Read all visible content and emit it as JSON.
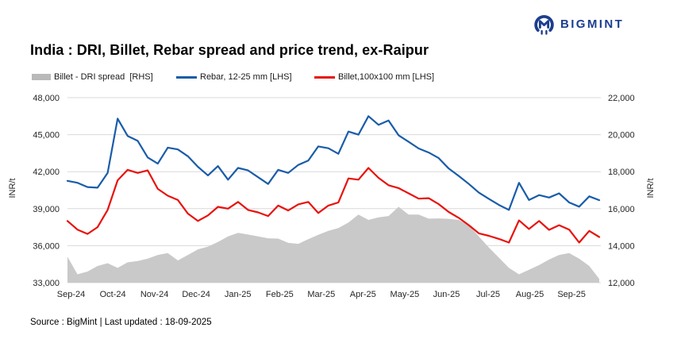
{
  "header": {
    "logo_text": "BIGMINT",
    "logo_color": "#1c3e8e"
  },
  "title": "India : DRI, Billet, Rebar spread and price trend, ex-Raipur",
  "legend": [
    {
      "label": "Billet - DRI spread  [RHS]",
      "swatch": "area",
      "color": "#b9b9b9"
    },
    {
      "label": "Rebar, 12-25 mm [LHS]",
      "swatch": "line",
      "color": "#1a5ca9"
    },
    {
      "label": "Billet,100x100 mm [LHS]",
      "swatch": "line",
      "color": "#e8120c"
    }
  ],
  "footer": "Source : BigMint | Last updated : 18-09-2025",
  "chart_data": {
    "type": "line",
    "title": "India : DRI, Billet, Rebar spread and price trend, ex-Raipur",
    "grid": true,
    "legend_position": "top",
    "x_tick_labels": [
      "Sep-24",
      "Oct-24",
      "Nov-24",
      "Dec-24",
      "Jan-25",
      "Feb-25",
      "Mar-25",
      "Apr-25",
      "May-25",
      "Jun-25",
      "Jul-25",
      "Aug-25",
      "Sep-25"
    ],
    "left_axis": {
      "label": "INR/t",
      "min": 33000,
      "max": 48000,
      "ticks": [
        "48,000",
        "45,000",
        "42,000",
        "39,000",
        "36,000",
        "33,000"
      ]
    },
    "right_axis": {
      "label": "INR/t",
      "min": 12000,
      "max": 22000,
      "ticks": [
        "22,000",
        "20,000",
        "18,000",
        "16,000",
        "14,000",
        "12,000"
      ]
    },
    "x_unit": "weekly, Sep-2024 to mid-Sep-2025",
    "series": [
      {
        "name": "Billet - DRI spread [RHS]",
        "slug": "spread-area",
        "type": "area",
        "axis": "right",
        "color": "#c9c9c9",
        "values": [
          13400,
          12450,
          12600,
          12900,
          13050,
          12800,
          13100,
          13170,
          13300,
          13500,
          13600,
          13200,
          13500,
          13800,
          13950,
          14200,
          14500,
          14690,
          14600,
          14500,
          14400,
          14380,
          14150,
          14100,
          14350,
          14590,
          14800,
          14950,
          15250,
          15680,
          15390,
          15530,
          15600,
          16100,
          15680,
          15680,
          15460,
          15470,
          15450,
          15390,
          15100,
          14500,
          13900,
          13350,
          12800,
          12450,
          12700,
          12950,
          13250,
          13500,
          13600,
          13300,
          12900,
          12200
        ]
      },
      {
        "name": "Rebar, 12-25 mm [LHS]",
        "slug": "rebar-line",
        "type": "line",
        "axis": "left",
        "color": "#1a5ca9",
        "values": [
          41250,
          41100,
          40750,
          40700,
          41900,
          46300,
          44900,
          44500,
          43150,
          42650,
          43950,
          43800,
          43250,
          42400,
          41700,
          42450,
          41350,
          42300,
          42100,
          41550,
          41000,
          42150,
          41900,
          42550,
          42900,
          44050,
          43900,
          43450,
          45250,
          45000,
          46500,
          45800,
          46150,
          44950,
          44420,
          43880,
          43550,
          43100,
          42250,
          41650,
          41000,
          40300,
          39800,
          39300,
          38900,
          41100,
          39700,
          40100,
          39900,
          40240,
          39500,
          39160,
          40000,
          39690
        ]
      },
      {
        "name": "Billet,100x100 mm [LHS]",
        "slug": "billet-line",
        "type": "line",
        "axis": "left",
        "color": "#e8120c",
        "values": [
          38000,
          37300,
          36950,
          37500,
          38900,
          41300,
          42150,
          41900,
          42100,
          40600,
          40050,
          39700,
          38600,
          38000,
          38450,
          39150,
          39000,
          39550,
          38900,
          38700,
          38400,
          39250,
          38850,
          39350,
          39550,
          38650,
          39250,
          39500,
          41450,
          41350,
          42300,
          41500,
          40900,
          40670,
          40240,
          39810,
          39850,
          39370,
          38730,
          38250,
          37660,
          37000,
          36800,
          36550,
          36250,
          38050,
          37350,
          38000,
          37280,
          37660,
          37300,
          36250,
          37200,
          36700
        ]
      }
    ]
  }
}
